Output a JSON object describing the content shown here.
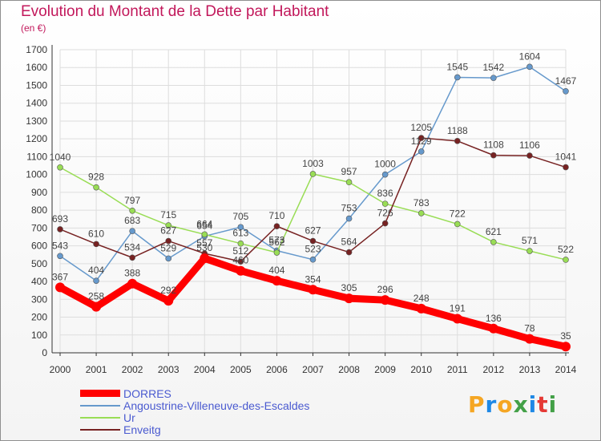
{
  "title": "Evolution du Montant de la Dette par Habitant",
  "unit_label": "(en €)",
  "logo": {
    "text": "Proxiti",
    "colors": [
      "#f5a623",
      "#1e88e5",
      "#f5a623",
      "#43a047",
      "#1e88e5",
      "#e53935",
      "#43a047"
    ]
  },
  "chart_data": {
    "type": "line",
    "title": "Evolution du Montant de la Dette par Habitant",
    "ylabel": "(en €)",
    "xlabel": "",
    "ylim": [
      0,
      1700
    ],
    "yticks": [
      0,
      100,
      200,
      300,
      400,
      500,
      600,
      700,
      800,
      900,
      1000,
      1100,
      1200,
      1300,
      1400,
      1500,
      1600,
      1700
    ],
    "x": [
      "2000",
      "2001",
      "2002",
      "2003",
      "2004",
      "2005",
      "2006",
      "2007",
      "2008",
      "2009",
      "2010",
      "2011",
      "2012",
      "2013",
      "2014"
    ],
    "grid": true,
    "legend_position": "bottom-left",
    "series": [
      {
        "name": "DORRES",
        "color": "#ff0000",
        "values": [
          367,
          258,
          388,
          292,
          530,
          460,
          404,
          354,
          305,
          296,
          248,
          191,
          136,
          78,
          35
        ]
      },
      {
        "name": "Angoustrine-Villeneuve-des-Escaldes",
        "color": "#6699cc",
        "values": [
          543,
          404,
          683,
          529,
          654,
          705,
          573,
          523,
          753,
          1000,
          1129,
          1545,
          1542,
          1604,
          1467
        ]
      },
      {
        "name": "Ur",
        "color": "#99dd55",
        "values": [
          1040,
          928,
          797,
          715,
          664,
          613,
          562,
          1003,
          957,
          836,
          783,
          722,
          621,
          571,
          522
        ]
      },
      {
        "name": "Enveitg",
        "color": "#772222",
        "values": [
          693,
          610,
          534,
          627,
          557,
          512,
          710,
          627,
          564,
          726,
          1205,
          1188,
          1108,
          1106,
          1041
        ]
      }
    ]
  }
}
